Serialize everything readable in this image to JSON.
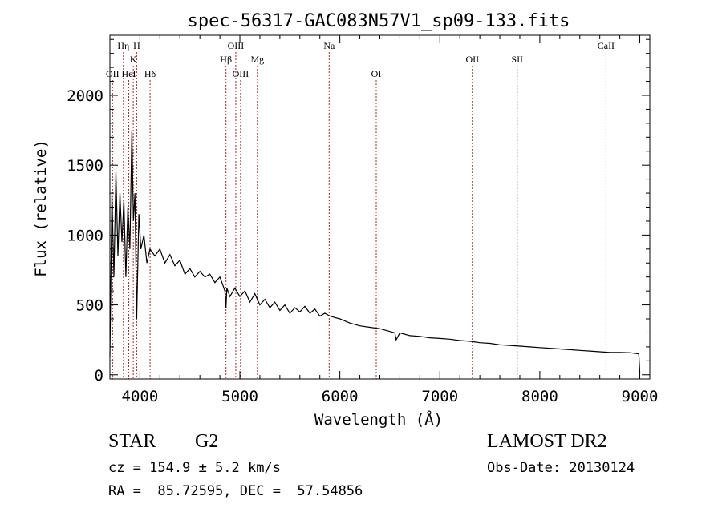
{
  "chart_data": {
    "type": "line",
    "title": "spec-56317-GAC083N57V1_sp09-133.fits",
    "xlabel": "Wavelength (Å)",
    "ylabel": "Flux (relative)",
    "xlim": [
      3700,
      9100
    ],
    "ylim": [
      -30,
      2430
    ],
    "x_ticks": [
      4000,
      5000,
      6000,
      7000,
      8000,
      9000
    ],
    "y_ticks": [
      0,
      500,
      1000,
      1500,
      2000
    ],
    "grid": false,
    "series": [
      {
        "x": [
          3700,
          3720,
          3740,
          3760,
          3780,
          3800,
          3820,
          3840,
          3860,
          3880,
          3900,
          3920,
          3935,
          3950,
          3968,
          3990,
          4010,
          4040,
          4070,
          4100,
          4150,
          4200,
          4250,
          4300,
          4350,
          4400,
          4450,
          4500,
          4550,
          4600,
          4650,
          4700,
          4750,
          4800,
          4850,
          4861,
          4870,
          4900,
          4950,
          5000,
          5050,
          5100,
          5150,
          5200,
          5250,
          5300,
          5350,
          5400,
          5450,
          5500,
          5550,
          5600,
          5650,
          5700,
          5750,
          5800,
          5850,
          5900,
          5950,
          6000,
          6100,
          6200,
          6300,
          6400,
          6500,
          6550,
          6563,
          6600,
          6700,
          6800,
          6900,
          7000,
          7100,
          7200,
          7300,
          7400,
          7500,
          7600,
          7700,
          7800,
          7900,
          8000,
          8100,
          8200,
          8300,
          8400,
          8500,
          8600,
          8700,
          8800,
          8900,
          8990,
          9000
        ],
        "y": [
          130,
          1300,
          700,
          1450,
          850,
          1300,
          950,
          1250,
          700,
          1200,
          900,
          1750,
          1100,
          1300,
          400,
          1150,
          900,
          1000,
          800,
          900,
          850,
          900,
          800,
          860,
          780,
          820,
          720,
          760,
          700,
          740,
          700,
          720,
          660,
          700,
          600,
          480,
          620,
          560,
          620,
          560,
          600,
          520,
          580,
          500,
          540,
          480,
          520,
          460,
          500,
          440,
          480,
          450,
          490,
          440,
          470,
          420,
          440,
          420,
          410,
          400,
          370,
          350,
          340,
          330,
          310,
          300,
          250,
          300,
          280,
          275,
          265,
          260,
          255,
          245,
          240,
          230,
          225,
          215,
          210,
          205,
          200,
          195,
          190,
          185,
          180,
          175,
          170,
          165,
          160,
          160,
          158,
          150,
          20
        ],
        "style": "black solid line"
      }
    ],
    "spectral_lines": [
      {
        "label": "OII",
        "x": 3727,
        "row": 3
      },
      {
        "label": "HeI",
        "x": 3889,
        "row": 3
      },
      {
        "label": "Hη",
        "x": 3835,
        "row": 1
      },
      {
        "label": "H",
        "x": 3968,
        "row": 1
      },
      {
        "label": "K",
        "x": 3934,
        "row": 2
      },
      {
        "label": "Hδ",
        "x": 4102,
        "row": 3
      },
      {
        "label": "Hβ",
        "x": 4861,
        "row": 2
      },
      {
        "label": "OIII",
        "x": 4959,
        "row": 1
      },
      {
        "label": "OIII",
        "x": 5007,
        "row": 3
      },
      {
        "label": "Mg",
        "x": 5175,
        "row": 2
      },
      {
        "label": "Na",
        "x": 5893,
        "row": 1
      },
      {
        "label": "OI",
        "x": 6364,
        "row": 3
      },
      {
        "label": "OII",
        "x": 7325,
        "row": 2
      },
      {
        "label": "SII",
        "x": 7774,
        "row": 2
      },
      {
        "label": "CaII",
        "x": 8662,
        "row": 1
      }
    ]
  },
  "info": {
    "object_class": "STAR",
    "subclass": "G2",
    "survey": "LAMOST DR2",
    "redshift": "cz = 154.9 ± 5.2 km/s",
    "obs_date": "Obs-Date: 20130124",
    "coords": "RA =  85.72595, DEC =  57.54856"
  },
  "colors": {
    "line": "#000000",
    "marker": "#b22222"
  }
}
